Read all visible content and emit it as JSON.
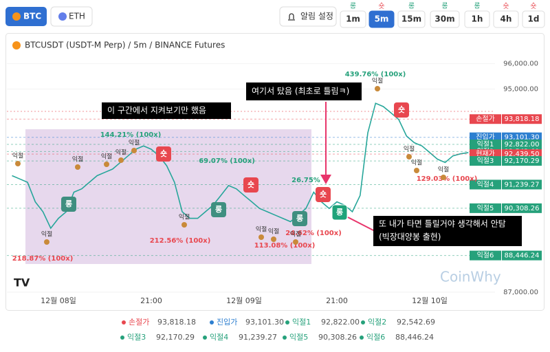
{
  "tabs": [
    "BTC",
    "ETH"
  ],
  "alert_button": "알림 설정",
  "timeframes": [
    {
      "signal": "롱",
      "label": "1m",
      "side": "long"
    },
    {
      "signal": "숏",
      "label": "5m",
      "side": "short",
      "active": true
    },
    {
      "signal": "롱",
      "label": "15m",
      "side": "long"
    },
    {
      "signal": "롱",
      "label": "30m",
      "side": "long"
    },
    {
      "signal": "롱",
      "label": "1h",
      "side": "long"
    },
    {
      "signal": "숏",
      "label": "4h",
      "side": "short"
    },
    {
      "signal": "숏",
      "label": "1d",
      "side": "short"
    }
  ],
  "symbol": "BTCUSDT (USDT-M Perp) / 5m / BINANCE Futures",
  "watermark": "CoinWhy",
  "chart_data": {
    "type": "line",
    "color": "#26a69a",
    "categories": [
      null,
      null,
      null,
      null,
      null,
      null,
      "12월 08일",
      null,
      null,
      null,
      null,
      null,
      null,
      null,
      null,
      null,
      null,
      null,
      "21:00",
      null,
      null,
      null,
      null,
      null,
      null,
      null,
      null,
      null,
      null,
      null,
      "12월 09일",
      null,
      null,
      null,
      null,
      null,
      null,
      null,
      null,
      null,
      null,
      null,
      "21:00",
      null,
      null,
      null,
      null,
      null,
      null,
      null,
      null,
      null,
      null,
      null,
      "12월 10일",
      null,
      null,
      null,
      null,
      null
    ],
    "values": [
      91590,
      91460,
      91330,
      90560,
      90170,
      89520,
      89910,
      90170,
      90940,
      91070,
      91330,
      91590,
      91720,
      91850,
      92110,
      92370,
      92630,
      92760,
      92630,
      92370,
      91980,
      91330,
      90170,
      89910,
      89910,
      90170,
      90430,
      90810,
      91200,
      91070,
      90810,
      90560,
      90300,
      90170,
      90040,
      89910,
      89780,
      90040,
      90300,
      90940,
      90560,
      90300,
      90560,
      90430,
      90170,
      90810,
      93280,
      94440,
      94310,
      94060,
      93800,
      93150,
      92890,
      92760,
      92500,
      92240,
      92110,
      92370,
      92450,
      92500
    ],
    "ylim": [
      86920,
      97100
    ],
    "yticks": [
      {
        "value": 96000,
        "label": "96,000.00"
      },
      {
        "value": 95000,
        "label": "95,000.00"
      },
      {
        "value": 87000,
        "label": "87,000.00"
      }
    ],
    "levels": [
      {
        "name": "손절가",
        "value": 93818.18,
        "value_label": "93,818.18",
        "color": "#e8474f"
      },
      {
        "name": "진입가",
        "value": 93101.3,
        "value_label": "93,101.30",
        "color": "#2d7fd0"
      },
      {
        "name": "익절1",
        "value": 92822.0,
        "value_label": "92,822.00",
        "color": "#26a17b"
      },
      {
        "name": "익절2",
        "value": 92542.69,
        "value_label": "92,542.69",
        "color": "#26a17b"
      },
      {
        "name": "현재가",
        "value": 92439.5,
        "value_label": "92,439.50",
        "color": "#e8474f"
      },
      {
        "name": "익절3",
        "value": 92170.29,
        "value_label": "92,170.29",
        "color": "#26a17b"
      },
      {
        "name": "익절4",
        "value": 91239.27,
        "value_label": "91,239.27",
        "color": "#26a17b"
      },
      {
        "name": "익절5",
        "value": 90308.26,
        "value_label": "90,308.26",
        "color": "#26a17b"
      },
      {
        "name": "익절6",
        "value": 88446.24,
        "value_label": "88,446.24",
        "color": "#26a17b"
      }
    ]
  },
  "marks": {
    "short": "숏",
    "long": "롱",
    "take": "익절"
  },
  "profits": {
    "long": [
      "439.76% (100x)",
      "144.21% (100x)",
      "69.07% (100x)",
      "26.75%"
    ],
    "short": [
      "218.87% (100x)",
      "212.56% (100x)",
      "113.08% (100x)",
      "24.62% (100x)",
      "129.03% (100x)"
    ]
  },
  "callouts": [
    {
      "lines": [
        "이 구간에서 지켜보기만 했음"
      ]
    },
    {
      "lines": [
        "여기서 탔음 (최초로 틀림ㅋ)"
      ]
    },
    {
      "lines": [
        "또 내가 타면 틀릴거야 생각해서 안탐",
        "(빅장대양봉 출현)"
      ]
    }
  ]
}
